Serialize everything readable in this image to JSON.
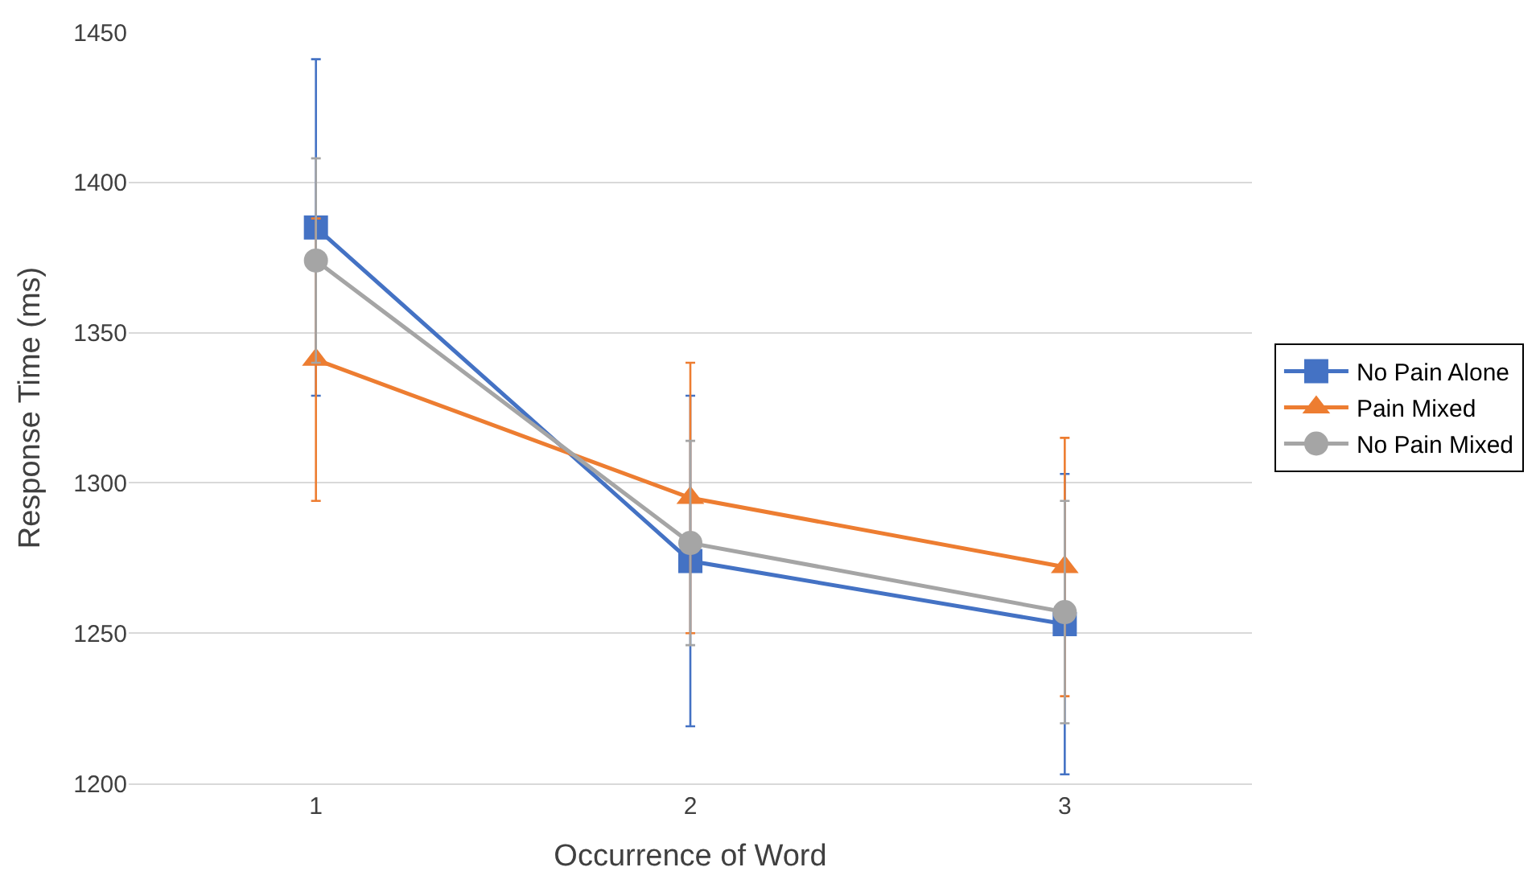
{
  "chart_data": {
    "type": "line",
    "xlabel": "Occurrence of Word",
    "ylabel": "Response Time (ms)",
    "categories": [
      "1",
      "2",
      "3"
    ],
    "series": [
      {
        "name": "No Pain Alone",
        "color": "#4472c4",
        "marker": "square",
        "values": [
          1385,
          1274,
          1253
        ],
        "errors": [
          56,
          55,
          50
        ]
      },
      {
        "name": "Pain Mixed",
        "color": "#ed7d31",
        "marker": "triangle",
        "values": [
          1341,
          1295,
          1272
        ],
        "errors": [
          47,
          45,
          43
        ]
      },
      {
        "name": "No Pain Mixed",
        "color": "#a5a5a5",
        "marker": "circle",
        "values": [
          1374,
          1280,
          1257
        ],
        "errors": [
          34,
          34,
          37
        ]
      }
    ],
    "ylim": [
      1200,
      1450
    ],
    "yticks": [
      1200,
      1250,
      1300,
      1350,
      1400,
      1450
    ],
    "grid": "y",
    "legend": "right"
  }
}
